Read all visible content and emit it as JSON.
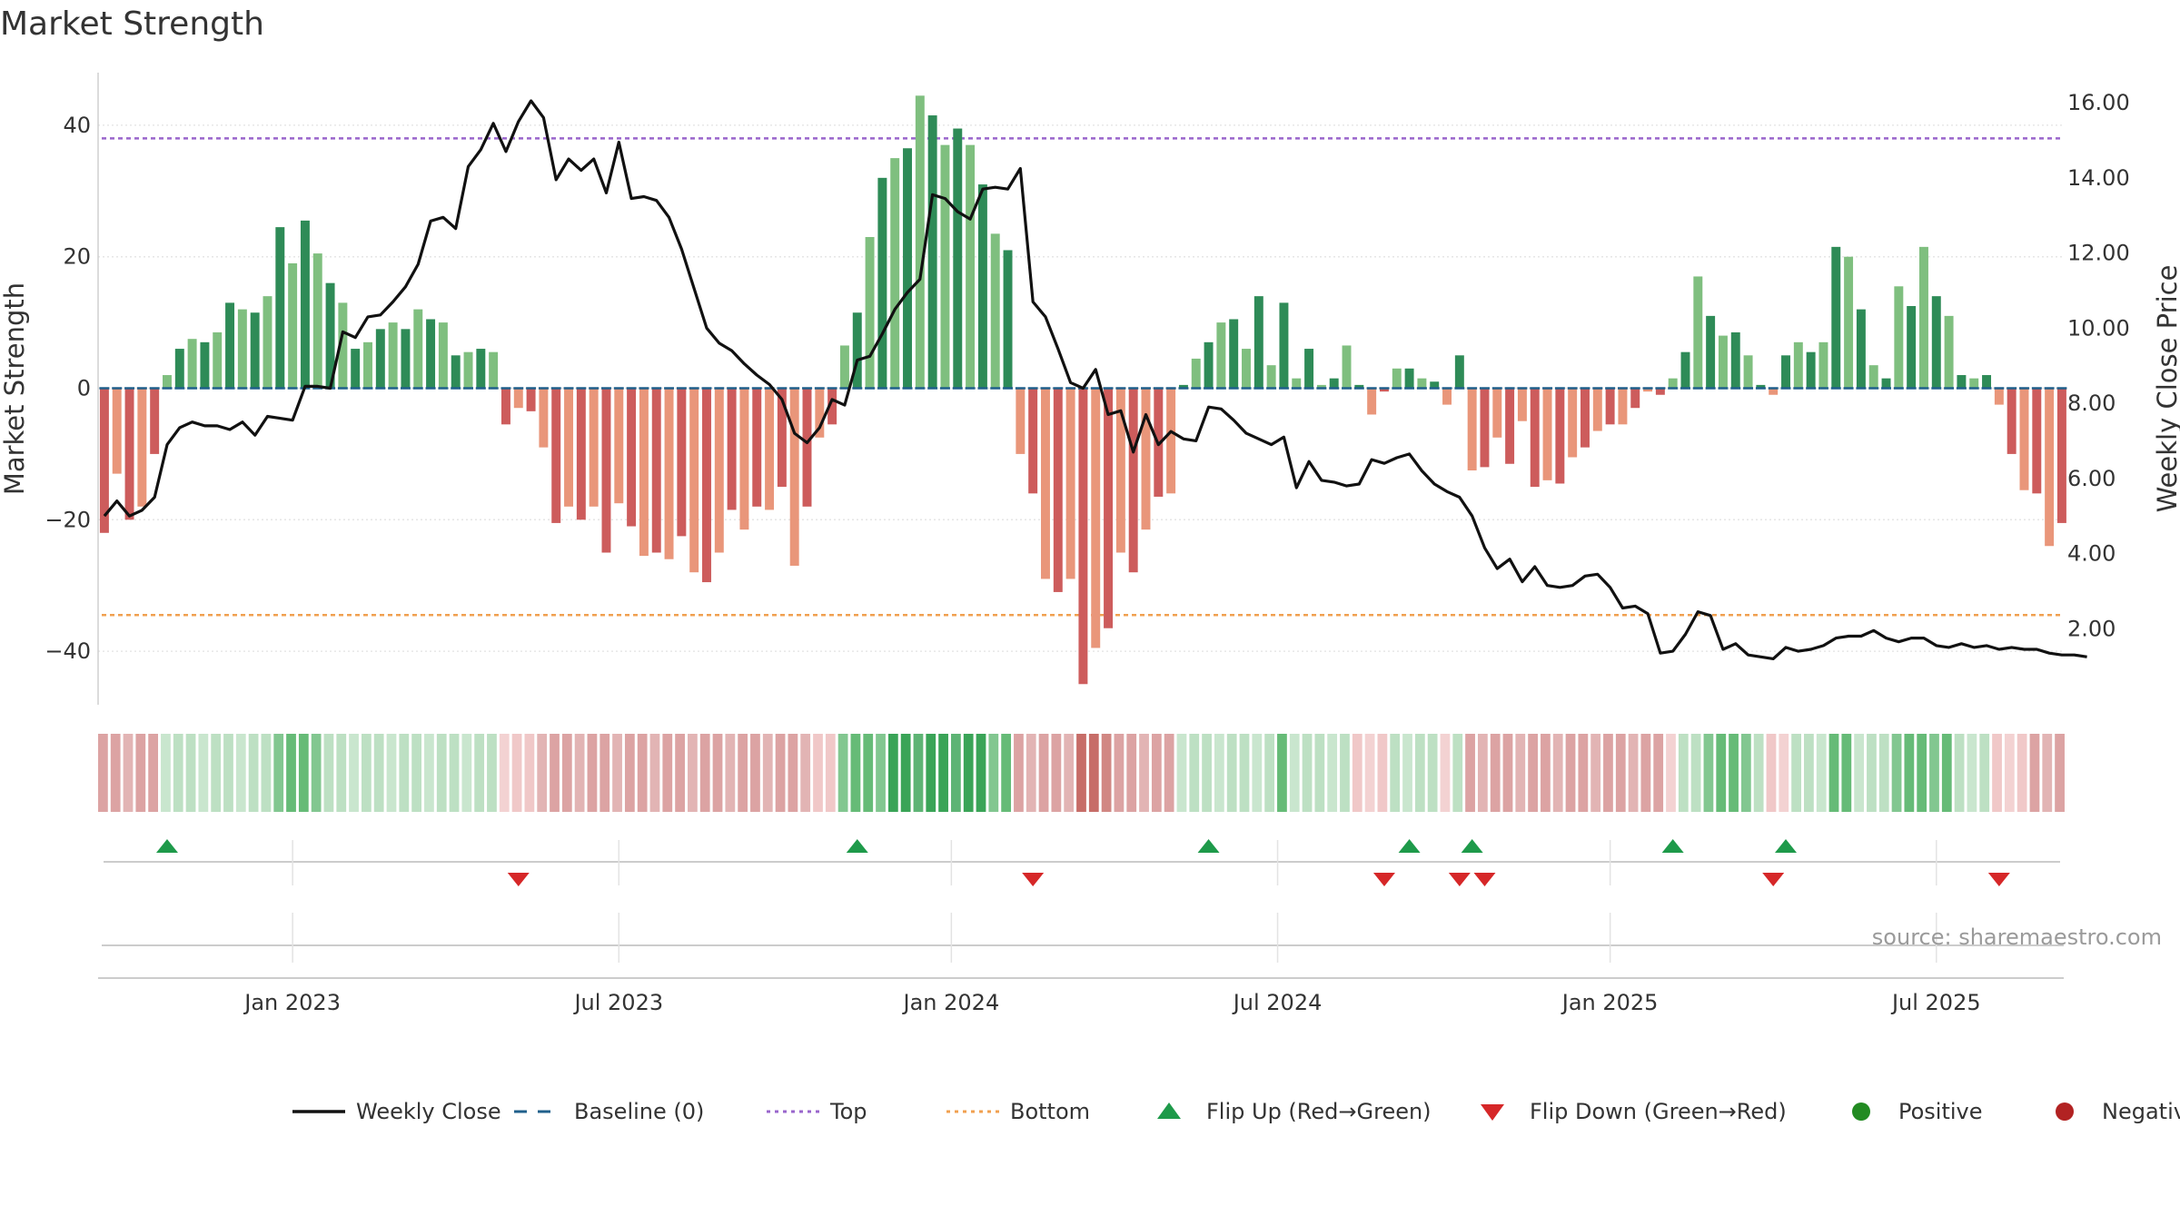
{
  "chart_data": {
    "type": "bar+line",
    "title": "Market Strength",
    "ylabel_left": "Market Strength",
    "ylabel_right": "Weekly Close Price",
    "source": "source: sharemaestro.com",
    "ylim_left": [
      -48,
      48
    ],
    "ylim_right": [
      0,
      16.8
    ],
    "yticks_left": [
      "40",
      "20",
      "0",
      "−20",
      "−40"
    ],
    "yticks_left_values": [
      40,
      20,
      0,
      -20,
      -40
    ],
    "yticks_right": [
      "16.00",
      "14.00",
      "12.00",
      "10.00",
      "8.00",
      "6.00",
      "4.00",
      "2.00"
    ],
    "yticks_right_values": [
      16,
      14,
      12,
      10,
      8,
      6,
      4,
      2
    ],
    "x_start": "2022-09-19",
    "x_step_weeks": 1,
    "xticks": [
      {
        "label": "Jan 2023",
        "week": 15
      },
      {
        "label": "Jul 2023",
        "week": 41
      },
      {
        "label": "Jan 2024",
        "week": 67.5
      },
      {
        "label": "Jul 2024",
        "week": 93.5
      },
      {
        "label": "Jan 2025",
        "week": 120
      },
      {
        "label": "Jul 2025",
        "week": 146
      }
    ],
    "top_line": 38,
    "bottom_line": -34.5,
    "strength": [
      -22,
      -13,
      -20,
      -18,
      -10,
      2,
      6,
      7.5,
      7,
      8.5,
      13,
      12,
      11.5,
      14,
      24.5,
      19,
      25.5,
      20.5,
      16,
      13,
      6,
      7,
      9,
      10,
      9,
      12,
      10.5,
      10,
      5,
      5.5,
      6,
      5.5,
      -5.5,
      -3,
      -3.5,
      -9,
      -20.5,
      -18,
      -20,
      -18,
      -25,
      -17.5,
      -21,
      -25.5,
      -25,
      -26,
      -22.5,
      -28,
      -29.5,
      -25,
      -18.5,
      -21.5,
      -18,
      -18.5,
      -15,
      -27,
      -18,
      -7.5,
      -5.5,
      6.5,
      11.5,
      23,
      32,
      35,
      36.5,
      44.5,
      41.5,
      37,
      39.5,
      37,
      31,
      23.5,
      21,
      -10,
      -16,
      -29,
      -31,
      -29,
      -45,
      -39.5,
      -36.5,
      -25,
      -28,
      -21.5,
      -16.5,
      -16,
      0.5,
      4.5,
      7,
      10,
      10.5,
      6,
      14,
      3.5,
      13,
      1.5,
      6,
      0.5,
      1.5,
      6.5,
      0.5,
      -4,
      -0.5,
      3,
      3,
      1.5,
      1,
      -2.5,
      5,
      -12.5,
      -12,
      -7.5,
      -11.5,
      -5,
      -15,
      -14,
      -14.5,
      -10.5,
      -9,
      -6.5,
      -5.5,
      -5.5,
      -3,
      -0.5,
      -1,
      1.5,
      5.5,
      17,
      11,
      8,
      8.5,
      5,
      0.5,
      -1,
      5,
      7,
      5.5,
      7,
      21.5,
      20,
      12,
      3.5,
      1.5,
      15.5,
      12.5,
      21.5,
      14,
      11,
      2,
      1.5,
      2,
      -2.5,
      -10,
      -15.5,
      -16,
      -24,
      -20.5
    ],
    "close": [
      5.0,
      5.4,
      5.0,
      5.15,
      5.5,
      6.9,
      7.35,
      7.5,
      7.4,
      7.4,
      7.3,
      7.5,
      7.15,
      7.65,
      7.6,
      7.55,
      8.45,
      8.45,
      8.4,
      9.9,
      9.75,
      10.3,
      10.35,
      10.7,
      11.1,
      11.7,
      12.85,
      12.95,
      12.65,
      14.3,
      14.75,
      15.45,
      14.7,
      15.5,
      16.05,
      15.6,
      13.95,
      14.5,
      14.2,
      14.5,
      13.6,
      14.95,
      13.45,
      13.5,
      13.4,
      12.95,
      12.1,
      11.05,
      10.0,
      9.6,
      9.4,
      9.05,
      8.75,
      8.5,
      8.1,
      7.2,
      6.95,
      7.35,
      8.1,
      7.95,
      9.15,
      9.25,
      9.85,
      10.5,
      10.95,
      11.3,
      13.55,
      13.45,
      13.1,
      12.9,
      13.7,
      13.75,
      13.7,
      14.25,
      10.7,
      10.3,
      9.45,
      8.55,
      8.4,
      8.9,
      7.7,
      7.8,
      6.7,
      7.7,
      6.9,
      7.25,
      7.05,
      7.0,
      7.9,
      7.85,
      7.55,
      7.2,
      7.05,
      6.9,
      7.1,
      5.75,
      6.45,
      5.95,
      5.9,
      5.8,
      5.85,
      6.5,
      6.4,
      6.55,
      6.65,
      6.2,
      5.85,
      5.65,
      5.5,
      5.0,
      4.15,
      3.6,
      3.85,
      3.25,
      3.65,
      3.15,
      3.1,
      3.15,
      3.4,
      3.45,
      3.1,
      2.55,
      2.6,
      2.4,
      1.35,
      1.4,
      1.85,
      2.45,
      2.35,
      1.45,
      1.6,
      1.3,
      1.25,
      1.2,
      1.5,
      1.4,
      1.45,
      1.55,
      1.75,
      1.8,
      1.8,
      1.95,
      1.75,
      1.65,
      1.75,
      1.75,
      1.55,
      1.5,
      1.6,
      1.5,
      1.55,
      1.45,
      1.5,
      1.45,
      1.45,
      1.35,
      1.3,
      1.3,
      1.25
    ],
    "band": [
      -2,
      -2,
      -2,
      -2,
      -2,
      1,
      1,
      1,
      1,
      1,
      1,
      1,
      1,
      1,
      2,
      2,
      2,
      2,
      1,
      1,
      1,
      1,
      1,
      1,
      1,
      1,
      1,
      1,
      1,
      1,
      1,
      1,
      -1,
      -1,
      -1,
      -2,
      -2,
      -2,
      -2,
      -2,
      -2,
      -2,
      -2,
      -2,
      -2,
      -2,
      -2,
      -2,
      -2,
      -2,
      -2,
      -2,
      -2,
      -2,
      -2,
      -2,
      -2,
      -1,
      -1,
      2,
      2,
      2,
      2,
      3,
      3,
      3,
      3,
      3,
      3,
      3,
      3,
      2,
      2,
      -2,
      -2,
      -2,
      -2,
      -2,
      -3,
      -3,
      -3,
      -2,
      -2,
      -2,
      -2,
      -2,
      1,
      1,
      1,
      1,
      1,
      1,
      1,
      1,
      2,
      1,
      1,
      1,
      1,
      1,
      -1,
      -1,
      -1,
      1,
      1,
      1,
      1,
      -1,
      1,
      -2,
      -2,
      -2,
      -2,
      -2,
      -2,
      -2,
      -2,
      -2,
      -2,
      -2,
      -2,
      -2,
      -2,
      -2,
      -2,
      -1,
      1,
      1,
      2,
      2,
      2,
      2,
      1,
      -1,
      -1,
      1,
      1,
      1,
      2,
      2,
      1,
      1,
      1,
      2,
      2,
      2,
      2,
      2,
      1,
      1,
      1,
      -1,
      -1,
      -1,
      -2,
      -2,
      -2
    ],
    "flip_up_weeks": [
      5,
      60,
      88,
      104,
      109,
      125,
      134
    ],
    "flip_down_weeks": [
      33,
      74,
      102,
      108,
      110,
      133,
      151
    ],
    "legend": [
      {
        "label": "Weekly Close",
        "kind": "line",
        "color": "#111111"
      },
      {
        "label": "Baseline (0)",
        "kind": "dash",
        "color": "#1f5f8b"
      },
      {
        "label": "Top",
        "kind": "dot",
        "color": "#9966cc"
      },
      {
        "label": "Bottom",
        "kind": "dot",
        "color": "#f0a050"
      },
      {
        "label": "Flip Up (Red→Green)",
        "kind": "up",
        "color": "#1e9a4a"
      },
      {
        "label": "Flip Down (Green→Red)",
        "kind": "down",
        "color": "#d62728"
      },
      {
        "label": "Positive",
        "kind": "circle",
        "color": "#228b22"
      },
      {
        "label": "Negative",
        "kind": "circle",
        "color": "#b22222"
      }
    ],
    "colors": {
      "pos_strong": "#2e8b57",
      "pos_light": "#7fbf7f",
      "neg_strong": "#cd5c5c",
      "neg_light": "#e9967a",
      "close_line": "#111111",
      "baseline": "#1f5f8b",
      "top_line": "#9966cc",
      "bottom_line": "#f0a050",
      "flip_up": "#1e9a4a",
      "flip_down": "#d62728",
      "grid": "#e6e6e6",
      "axis": "#cfcfcf"
    }
  }
}
